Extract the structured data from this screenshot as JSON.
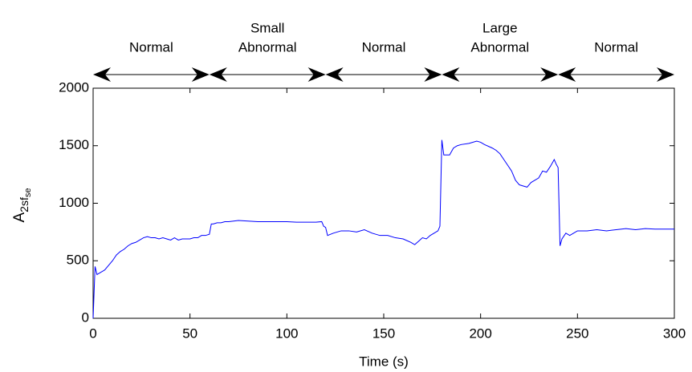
{
  "chart_data": {
    "type": "line",
    "xlabel": "Time (s)",
    "ylabel": [
      "A",
      "2sf",
      "se"
    ],
    "xlim": [
      0,
      300
    ],
    "xticks": [
      0,
      50,
      100,
      150,
      200,
      250,
      300
    ],
    "ylim": [
      0,
      2000
    ],
    "yticks": [
      0,
      500,
      1000,
      1500,
      2000
    ],
    "grid": false,
    "segments": [
      {
        "label": [
          "Normal"
        ],
        "start": 0,
        "end": 60
      },
      {
        "label": [
          "Small",
          "Abnormal"
        ],
        "start": 60,
        "end": 120
      },
      {
        "label": [
          "Normal"
        ],
        "start": 120,
        "end": 180
      },
      {
        "label": [
          "Large",
          "Abnormal"
        ],
        "start": 180,
        "end": 240
      },
      {
        "label": [
          "Normal"
        ],
        "start": 240,
        "end": 300
      }
    ],
    "x": [
      0,
      1,
      2,
      4,
      6,
      8,
      10,
      12,
      14,
      16,
      18,
      20,
      22,
      24,
      26,
      28,
      30,
      32,
      34,
      36,
      38,
      40,
      42,
      44,
      46,
      48,
      50,
      52,
      54,
      56,
      58,
      60,
      61,
      62,
      64,
      66,
      68,
      70,
      75,
      80,
      85,
      90,
      95,
      100,
      105,
      110,
      115,
      118,
      119,
      120,
      121,
      124,
      128,
      132,
      136,
      140,
      144,
      148,
      152,
      156,
      160,
      164,
      166,
      168,
      170,
      172,
      174,
      176,
      178,
      179,
      180,
      181,
      184,
      186,
      188,
      190,
      194,
      198,
      200,
      202,
      206,
      208,
      210,
      212,
      214,
      216,
      218,
      220,
      222,
      224,
      226,
      228,
      230,
      232,
      234,
      236,
      238,
      239,
      240,
      241,
      242,
      244,
      246,
      248,
      250,
      255,
      260,
      265,
      270,
      275,
      280,
      285,
      290,
      295,
      300
    ],
    "series": [
      {
        "name": null,
        "color": "#0000ff",
        "values": [
          0,
          450,
          380,
          400,
          420,
          460,
          500,
          550,
          580,
          600,
          630,
          650,
          660,
          680,
          700,
          710,
          700,
          700,
          690,
          700,
          690,
          680,
          700,
          680,
          690,
          690,
          690,
          700,
          700,
          720,
          720,
          730,
          820,
          820,
          830,
          830,
          840,
          840,
          850,
          845,
          840,
          840,
          840,
          840,
          835,
          835,
          835,
          840,
          800,
          790,
          720,
          740,
          760,
          760,
          750,
          770,
          740,
          720,
          720,
          700,
          690,
          660,
          640,
          670,
          700,
          690,
          720,
          740,
          760,
          800,
          1550,
          1420,
          1420,
          1480,
          1500,
          1510,
          1520,
          1540,
          1530,
          1510,
          1480,
          1460,
          1430,
          1380,
          1330,
          1280,
          1200,
          1160,
          1150,
          1140,
          1180,
          1200,
          1220,
          1280,
          1270,
          1320,
          1380,
          1340,
          1310,
          630,
          690,
          740,
          720,
          740,
          760,
          760,
          770,
          760,
          770,
          780,
          770,
          780,
          775,
          775,
          775
        ]
      }
    ]
  }
}
